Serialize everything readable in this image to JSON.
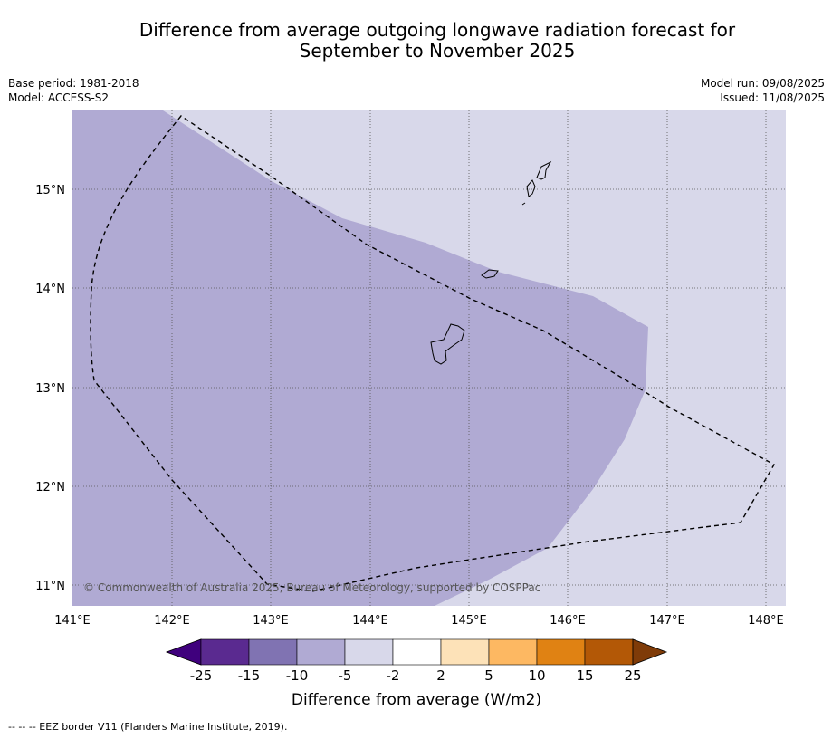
{
  "title_line1": "Difference from average outgoing longwave radiation forecast for",
  "title_line2": "September to November 2025",
  "meta_left": [
    "Base period: 1981-2018",
    "Model: ACCESS-S2"
  ],
  "meta_right": [
    "Model run: 09/08/2025",
    "Issued: 11/08/2025"
  ],
  "copyright": "© Commonwealth of Australia 2025, Bureau of Meteorology, supported by COSPPac",
  "lon_labels": [
    "141°E",
    "142°E",
    "143°E",
    "144°E",
    "145°E",
    "146°E",
    "147°E",
    "148°E"
  ],
  "lat_labels": [
    "15°N",
    "14°N",
    "13°N",
    "12°N",
    "11°N"
  ],
  "colorbar": {
    "title": "Difference from average (W/m2)",
    "ticks": [
      "-25",
      "-15",
      "-10",
      "-5",
      "-2",
      "2",
      "5",
      "10",
      "15",
      "25"
    ],
    "colors": [
      "#3f007d",
      "#5a2a90",
      "#8073b2",
      "#b0aad3",
      "#d8d8ea",
      "#ffffff",
      "#fde2b8",
      "#fdb862",
      "#e08213",
      "#b35806",
      "#7f3b08"
    ]
  },
  "footer": "--  --  -- EEZ border V11 (Flanders Marine Institute, 2019).",
  "regions": [
    {
      "name": "light-anomaly",
      "level": "-2 to -5",
      "color": "#d8d8ea"
    },
    {
      "name": "moderate-anomaly",
      "level": "-5 to -10",
      "color": "#b0aad3"
    }
  ]
}
